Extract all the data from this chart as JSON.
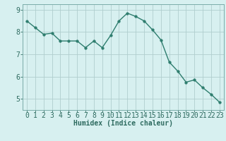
{
  "x": [
    0,
    1,
    2,
    3,
    4,
    5,
    6,
    7,
    8,
    9,
    10,
    11,
    12,
    13,
    14,
    15,
    16,
    17,
    18,
    19,
    20,
    21,
    22,
    23
  ],
  "y": [
    8.5,
    8.2,
    7.9,
    7.95,
    7.6,
    7.6,
    7.6,
    7.3,
    7.6,
    7.3,
    7.85,
    8.5,
    8.85,
    8.7,
    8.5,
    8.1,
    7.65,
    6.65,
    6.25,
    5.75,
    5.85,
    5.5,
    5.2,
    4.85
  ],
  "line_color": "#2e7d6e",
  "marker_color": "#2e7d6e",
  "bg_color": "#d7f0f0",
  "grid_color": "#b0cece",
  "spine_color": "#7aaba8",
  "xlabel": "Humidex (Indice chaleur)",
  "ylim": [
    4.5,
    9.25
  ],
  "xlim": [
    -0.5,
    23.5
  ],
  "yticks": [
    5,
    6,
    7,
    8,
    9
  ],
  "xticks": [
    0,
    1,
    2,
    3,
    4,
    5,
    6,
    7,
    8,
    9,
    10,
    11,
    12,
    13,
    14,
    15,
    16,
    17,
    18,
    19,
    20,
    21,
    22,
    23
  ],
  "font_color": "#2e6b60",
  "xlabel_fontsize": 7,
  "tick_fontsize": 7,
  "line_width": 1.0,
  "marker_size": 2.5
}
